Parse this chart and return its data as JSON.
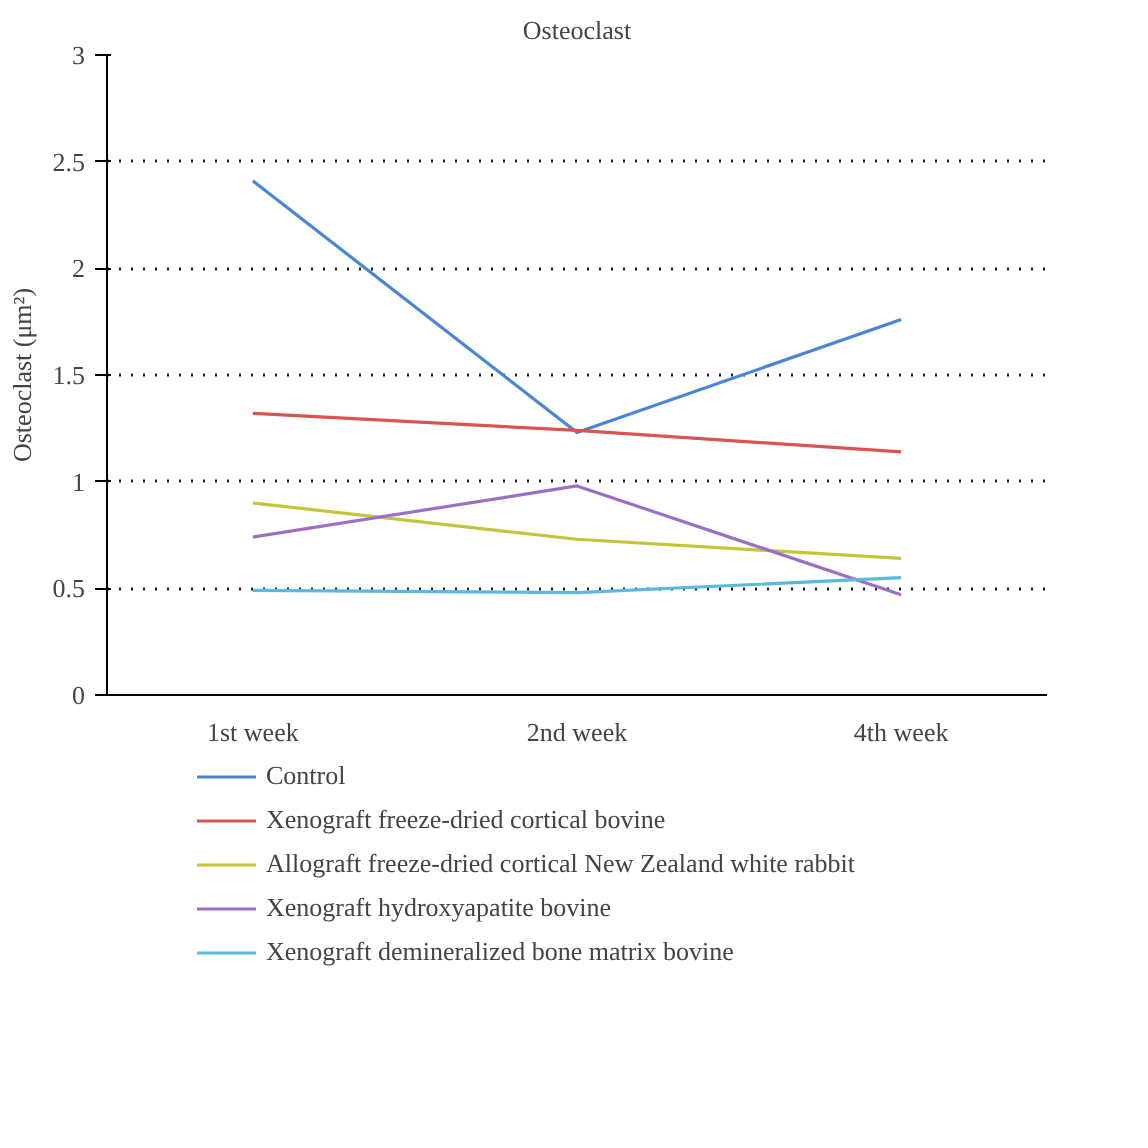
{
  "chart_data": {
    "type": "line",
    "title": "Osteoclast",
    "ylabel": "Osteoclast (μm²)",
    "categories": [
      "1st week",
      "2nd week",
      "4th week"
    ],
    "series": [
      {
        "name": "Control",
        "color": "#4a86d4",
        "values": [
          2.41,
          1.23,
          1.76
        ]
      },
      {
        "name": "Xenograft freeze-dried cortical bovine",
        "color": "#d9534f",
        "values": [
          1.32,
          1.24,
          1.14
        ]
      },
      {
        "name": "Allograft freeze-dried cortical New Zealand white rabbit",
        "color": "#c3c63a",
        "values": [
          0.9,
          0.73,
          0.64
        ]
      },
      {
        "name": "Xenograft hydroxyapatite bovine",
        "color": "#9b6fc4",
        "values": [
          0.74,
          0.98,
          0.47
        ]
      },
      {
        "name": "Xenograft demineralized bone matrix bovine",
        "color": "#5bb8e0",
        "values": [
          0.49,
          0.48,
          0.55
        ]
      }
    ],
    "ylim": [
      0,
      3
    ],
    "yticks": [
      0,
      0.5,
      1,
      1.5,
      2,
      2.5,
      3
    ],
    "grid": "y",
    "legend": "bottom",
    "marker": "none",
    "line_style": "solid"
  }
}
